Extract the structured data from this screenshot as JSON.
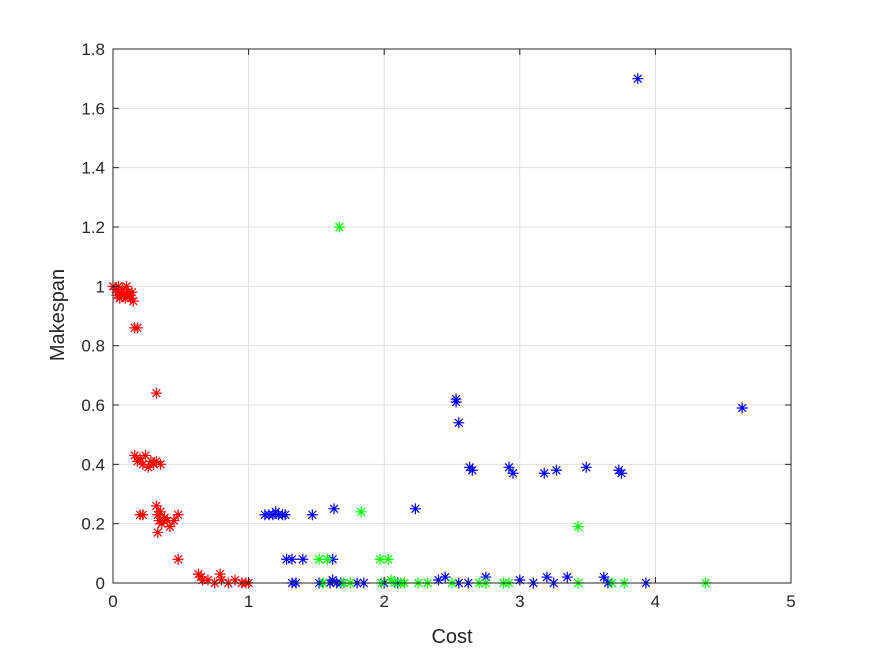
{
  "chart_data": {
    "type": "scatter",
    "title": "",
    "xlabel": "Cost",
    "ylabel": "Makespan",
    "xlim": [
      0,
      5
    ],
    "ylim": [
      0,
      1.8
    ],
    "xticks": [
      0,
      1,
      2,
      3,
      4,
      5
    ],
    "yticks": [
      0,
      0.2,
      0.4,
      0.6,
      0.8,
      1,
      1.2,
      1.4,
      1.6,
      1.8
    ],
    "xtick_labels": [
      "0",
      "1",
      "2",
      "3",
      "4",
      "5"
    ],
    "ytick_labels": [
      "0",
      "0.2",
      "0.4",
      "0.6",
      "0.8",
      "1",
      "1.2",
      "1.4",
      "1.6",
      "1.8"
    ],
    "grid": true,
    "marker": "asterisk",
    "series": [
      {
        "color": "#ff0000",
        "points": [
          [
            0.0,
            1.0
          ],
          [
            0.02,
            0.99
          ],
          [
            0.03,
            0.97
          ],
          [
            0.04,
            1.0
          ],
          [
            0.05,
            0.96
          ],
          [
            0.06,
            0.98
          ],
          [
            0.07,
            0.99
          ],
          [
            0.08,
            0.97
          ],
          [
            0.09,
            0.96
          ],
          [
            0.1,
            1.0
          ],
          [
            0.11,
            0.98
          ],
          [
            0.12,
            0.97
          ],
          [
            0.13,
            0.96
          ],
          [
            0.14,
            0.98
          ],
          [
            0.15,
            0.95
          ],
          [
            0.16,
            0.86
          ],
          [
            0.18,
            0.86
          ],
          [
            0.16,
            0.43
          ],
          [
            0.18,
            0.41
          ],
          [
            0.2,
            0.42
          ],
          [
            0.22,
            0.4
          ],
          [
            0.24,
            0.43
          ],
          [
            0.26,
            0.39
          ],
          [
            0.28,
            0.41
          ],
          [
            0.3,
            0.4
          ],
          [
            0.32,
            0.41
          ],
          [
            0.35,
            0.4
          ],
          [
            0.32,
            0.64
          ],
          [
            0.2,
            0.23
          ],
          [
            0.22,
            0.23
          ],
          [
            0.32,
            0.26
          ],
          [
            0.33,
            0.23
          ],
          [
            0.34,
            0.21
          ],
          [
            0.35,
            0.24
          ],
          [
            0.36,
            0.2
          ],
          [
            0.33,
            0.17
          ],
          [
            0.38,
            0.22
          ],
          [
            0.4,
            0.21
          ],
          [
            0.42,
            0.19
          ],
          [
            0.45,
            0.21
          ],
          [
            0.48,
            0.23
          ],
          [
            0.48,
            0.08
          ],
          [
            0.63,
            0.03
          ],
          [
            0.65,
            0.02
          ],
          [
            0.66,
            0.01
          ],
          [
            0.7,
            0.01
          ],
          [
            0.75,
            0.0
          ],
          [
            0.79,
            0.03
          ],
          [
            0.8,
            0.01
          ],
          [
            0.85,
            0.0
          ],
          [
            0.9,
            0.01
          ],
          [
            0.95,
            0.0
          ],
          [
            0.98,
            0.0
          ],
          [
            1.0,
            0.0
          ]
        ]
      },
      {
        "color": "#0000ff",
        "points": [
          [
            3.87,
            1.7
          ],
          [
            4.64,
            0.59
          ],
          [
            2.53,
            0.62
          ],
          [
            2.53,
            0.61
          ],
          [
            2.55,
            0.54
          ],
          [
            2.63,
            0.39
          ],
          [
            2.65,
            0.38
          ],
          [
            2.92,
            0.39
          ],
          [
            2.95,
            0.37
          ],
          [
            3.18,
            0.37
          ],
          [
            3.27,
            0.38
          ],
          [
            3.49,
            0.39
          ],
          [
            3.73,
            0.38
          ],
          [
            3.75,
            0.37
          ],
          [
            1.12,
            0.23
          ],
          [
            1.15,
            0.23
          ],
          [
            1.18,
            0.23
          ],
          [
            1.2,
            0.24
          ],
          [
            1.22,
            0.23
          ],
          [
            1.25,
            0.23
          ],
          [
            1.27,
            0.23
          ],
          [
            1.47,
            0.23
          ],
          [
            1.63,
            0.25
          ],
          [
            2.23,
            0.25
          ],
          [
            1.28,
            0.08
          ],
          [
            1.32,
            0.08
          ],
          [
            1.4,
            0.08
          ],
          [
            1.62,
            0.08
          ],
          [
            1.32,
            0.0
          ],
          [
            1.35,
            0.0
          ],
          [
            1.52,
            0.0
          ],
          [
            1.6,
            0.0
          ],
          [
            1.62,
            0.01
          ],
          [
            1.65,
            0.0
          ],
          [
            1.68,
            0.0
          ],
          [
            1.8,
            0.0
          ],
          [
            1.85,
            0.0
          ],
          [
            2.0,
            0.0
          ],
          [
            2.1,
            0.0
          ],
          [
            2.4,
            0.01
          ],
          [
            2.45,
            0.02
          ],
          [
            2.55,
            0.0
          ],
          [
            2.62,
            0.0
          ],
          [
            2.75,
            0.02
          ],
          [
            3.0,
            0.01
          ],
          [
            3.1,
            0.0
          ],
          [
            3.2,
            0.02
          ],
          [
            3.25,
            0.0
          ],
          [
            3.35,
            0.02
          ],
          [
            3.62,
            0.02
          ],
          [
            3.65,
            0.0
          ],
          [
            3.93,
            0.0
          ]
        ]
      },
      {
        "color": "#00ff00",
        "points": [
          [
            1.67,
            1.2
          ],
          [
            1.83,
            0.24
          ],
          [
            3.43,
            0.19
          ],
          [
            1.52,
            0.08
          ],
          [
            1.58,
            0.08
          ],
          [
            1.97,
            0.08
          ],
          [
            2.03,
            0.08
          ],
          [
            1.55,
            0.0
          ],
          [
            1.7,
            0.0
          ],
          [
            1.75,
            0.0
          ],
          [
            1.98,
            0.0
          ],
          [
            2.05,
            0.01
          ],
          [
            2.08,
            0.0
          ],
          [
            2.12,
            0.0
          ],
          [
            2.15,
            0.0
          ],
          [
            2.25,
            0.0
          ],
          [
            2.32,
            0.0
          ],
          [
            2.5,
            0.0
          ],
          [
            2.7,
            0.0
          ],
          [
            2.75,
            0.0
          ],
          [
            2.88,
            0.0
          ],
          [
            2.92,
            0.0
          ],
          [
            3.43,
            0.0
          ],
          [
            3.68,
            0.0
          ],
          [
            3.77,
            0.0
          ],
          [
            4.37,
            0.0
          ]
        ]
      }
    ]
  }
}
